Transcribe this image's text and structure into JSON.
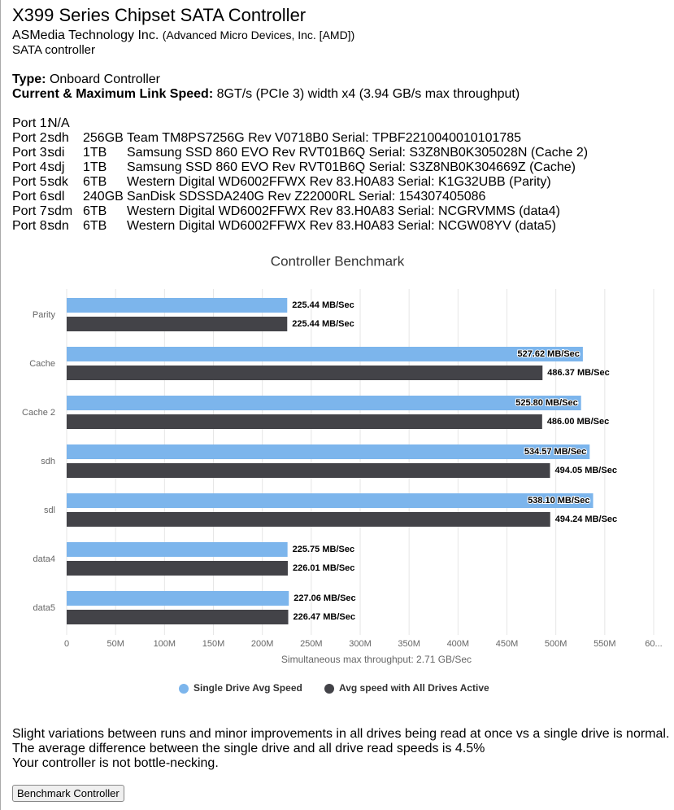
{
  "header": {
    "title": "X399 Series Chipset SATA Controller",
    "vendor": "ASMedia Technology Inc.",
    "vendor_note": "(Advanced Micro Devices, Inc. [AMD])",
    "class": "SATA controller"
  },
  "info": {
    "type_label": "Type:",
    "type_value": "Onboard Controller",
    "link_label": "Current & Maximum Link Speed:",
    "link_value": "8GT/s (PCIe 3) width x4 (3.94 GB/s max throughput)"
  },
  "ports": [
    {
      "label": "Port 1:",
      "device": "N/A"
    },
    {
      "label": "Port 2:",
      "device": "sdh",
      "size": "256GB",
      "description": "Team TM8PS7256G Rev V0718B0 Serial: TPBF2210040010101785"
    },
    {
      "label": "Port 3:",
      "device": "sdi",
      "size": "1TB",
      "description": "Samsung SSD 860 EVO Rev RVT01B6Q Serial: S3Z8NB0K305028N (Cache 2)"
    },
    {
      "label": "Port 4:",
      "device": "sdj",
      "size": "1TB",
      "description": "Samsung SSD 860 EVO Rev RVT01B6Q Serial: S3Z8NB0K304669Z (Cache)"
    },
    {
      "label": "Port 5:",
      "device": "sdk",
      "size": "6TB",
      "description": "Western Digital WD6002FFWX Rev 83.H0A83 Serial: K1G32UBB (Parity)"
    },
    {
      "label": "Port 6:",
      "device": "sdl",
      "size": "240GB",
      "description": "SanDisk SDSSDA240G Rev Z22000RL Serial: 154307405086"
    },
    {
      "label": "Port 7:",
      "device": "sdm",
      "size": "6TB",
      "description": "Western Digital WD6002FFWX Rev 83.H0A83 Serial: NCGRVMMS (data4)"
    },
    {
      "label": "Port 8:",
      "device": "sdn",
      "size": "6TB",
      "description": "Western Digital WD6002FFWX Rev 83.H0A83 Serial: NCGW08YV (data5)"
    }
  ],
  "chart_data": {
    "type": "hbar",
    "title": "Controller Benchmark",
    "x_label": "Simultaneous max throughput: 2.71 GB/Sec",
    "categories": [
      "Parity",
      "Cache",
      "Cache 2",
      "sdh",
      "sdl",
      "data4",
      "data5"
    ],
    "series": [
      {
        "name": "Single Drive Avg Speed",
        "color": "#7cb5ec",
        "values": [
          225.44,
          527.62,
          525.8,
          534.57,
          538.1,
          225.75,
          227.06
        ],
        "value_labels": [
          "225.44 MB/Sec",
          "527.62 MB/Sec",
          "525.80 MB/Sec",
          "534.57 MB/Sec",
          "538.10 MB/Sec",
          "225.75 MB/Sec",
          "227.06 MB/Sec"
        ]
      },
      {
        "name": "Avg speed with All Drives Active",
        "color": "#434348",
        "values": [
          225.44,
          486.37,
          486.0,
          494.05,
          494.24,
          226.01,
          226.47
        ],
        "value_labels": [
          "225.44 MB/Sec",
          "486.37 MB/Sec",
          "486.00 MB/Sec",
          "494.05 MB/Sec",
          "494.24 MB/Sec",
          "226.01 MB/Sec",
          "226.47 MB/Sec"
        ]
      }
    ],
    "xlim": [
      0,
      600
    ],
    "xticks": [
      0,
      {
        "value": 50,
        "label": "50M"
      },
      {
        "value": 100,
        "label": "100M"
      },
      {
        "value": 150,
        "label": "150M"
      },
      {
        "value": 200,
        "label": "200M"
      },
      {
        "value": 250,
        "label": "250M"
      },
      {
        "value": 300,
        "label": "300M"
      },
      {
        "value": 350,
        "label": "350M"
      },
      {
        "value": 400,
        "label": "400M"
      },
      {
        "value": 450,
        "label": "450M"
      },
      {
        "value": 500,
        "label": "500M"
      },
      {
        "value": 550,
        "label": "550M"
      },
      {
        "value": 600,
        "label": "60..."
      }
    ],
    "grid": true
  },
  "footer": [
    "Slight variations between runs and minor improvements in all drives being read at once vs a single drive is normal.",
    "The average difference between the single drive and all drive read speeds is 4.5%",
    "Your controller is not bottle-necking."
  ],
  "button": "Benchmark Controller"
}
